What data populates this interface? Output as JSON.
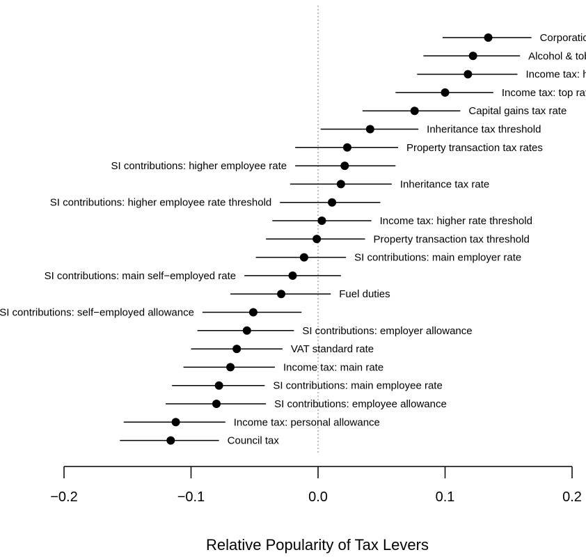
{
  "chart_data": {
    "type": "scatter",
    "subtype": "point-estimates-with-interval-bars",
    "xlabel": "Relative Popularity of Tax Levers",
    "xlim": [
      -0.2,
      0.2
    ],
    "xticks": [
      -0.2,
      -0.1,
      0.0,
      0.1,
      0.2
    ],
    "xtick_labels": [
      "−0.2",
      "−0.1",
      "0.0",
      "0.1",
      "0.2"
    ],
    "reference_line": {
      "x": 0,
      "style": "dotted",
      "color": "#999999"
    },
    "grid": false,
    "marker_color": "#000000",
    "points": [
      {
        "label": "Corporation tax rate",
        "estimate": 0.134,
        "low": 0.098,
        "high": 0.168
      },
      {
        "label": "Alcohol & tobacco duties",
        "estimate": 0.122,
        "low": 0.083,
        "high": 0.159
      },
      {
        "label": "Income tax: higher rate",
        "estimate": 0.118,
        "low": 0.078,
        "high": 0.157
      },
      {
        "label": "Income tax: top rate",
        "estimate": 0.1,
        "low": 0.061,
        "high": 0.138
      },
      {
        "label": "Capital gains tax rate",
        "estimate": 0.076,
        "low": 0.035,
        "high": 0.112
      },
      {
        "label": "Inheritance tax threshold",
        "estimate": 0.041,
        "low": 0.002,
        "high": 0.079
      },
      {
        "label": "Property transaction tax rates",
        "estimate": 0.023,
        "low": -0.018,
        "high": 0.063
      },
      {
        "label": "SI contributions: higher employee rate",
        "estimate": 0.021,
        "low": -0.018,
        "high": 0.061
      },
      {
        "label": "Inheritance tax rate",
        "estimate": 0.018,
        "low": -0.022,
        "high": 0.058
      },
      {
        "label": "SI contributions: higher employee rate threshold",
        "estimate": 0.011,
        "low": -0.03,
        "high": 0.049
      },
      {
        "label": "Income tax: higher rate threshold",
        "estimate": 0.003,
        "low": -0.036,
        "high": 0.042
      },
      {
        "label": "Property transaction tax threshold",
        "estimate": -0.001,
        "low": -0.041,
        "high": 0.037
      },
      {
        "label": "SI contributions: main employer rate",
        "estimate": -0.011,
        "low": -0.049,
        "high": 0.022
      },
      {
        "label": "SI contributions: main self−employed rate",
        "estimate": -0.02,
        "low": -0.058,
        "high": 0.018
      },
      {
        "label": "Fuel duties",
        "estimate": -0.029,
        "low": -0.069,
        "high": 0.01
      },
      {
        "label": "SI contributions: self−employed allowance",
        "estimate": -0.051,
        "low": -0.091,
        "high": -0.013
      },
      {
        "label": "SI contributions: employer allowance",
        "estimate": -0.056,
        "low": -0.095,
        "high": -0.019
      },
      {
        "label": "VAT standard rate",
        "estimate": -0.064,
        "low": -0.1,
        "high": -0.028
      },
      {
        "label": "Income tax: main rate",
        "estimate": -0.069,
        "low": -0.106,
        "high": -0.034
      },
      {
        "label": "SI contributions: main employee rate",
        "estimate": -0.078,
        "low": -0.115,
        "high": -0.042
      },
      {
        "label": "SI contributions: employee allowance",
        "estimate": -0.08,
        "low": -0.12,
        "high": -0.041
      },
      {
        "label": "Income tax: personal allowance",
        "estimate": -0.112,
        "low": -0.153,
        "high": -0.073
      },
      {
        "label": "Council tax",
        "estimate": -0.116,
        "low": -0.156,
        "high": -0.078
      }
    ]
  }
}
